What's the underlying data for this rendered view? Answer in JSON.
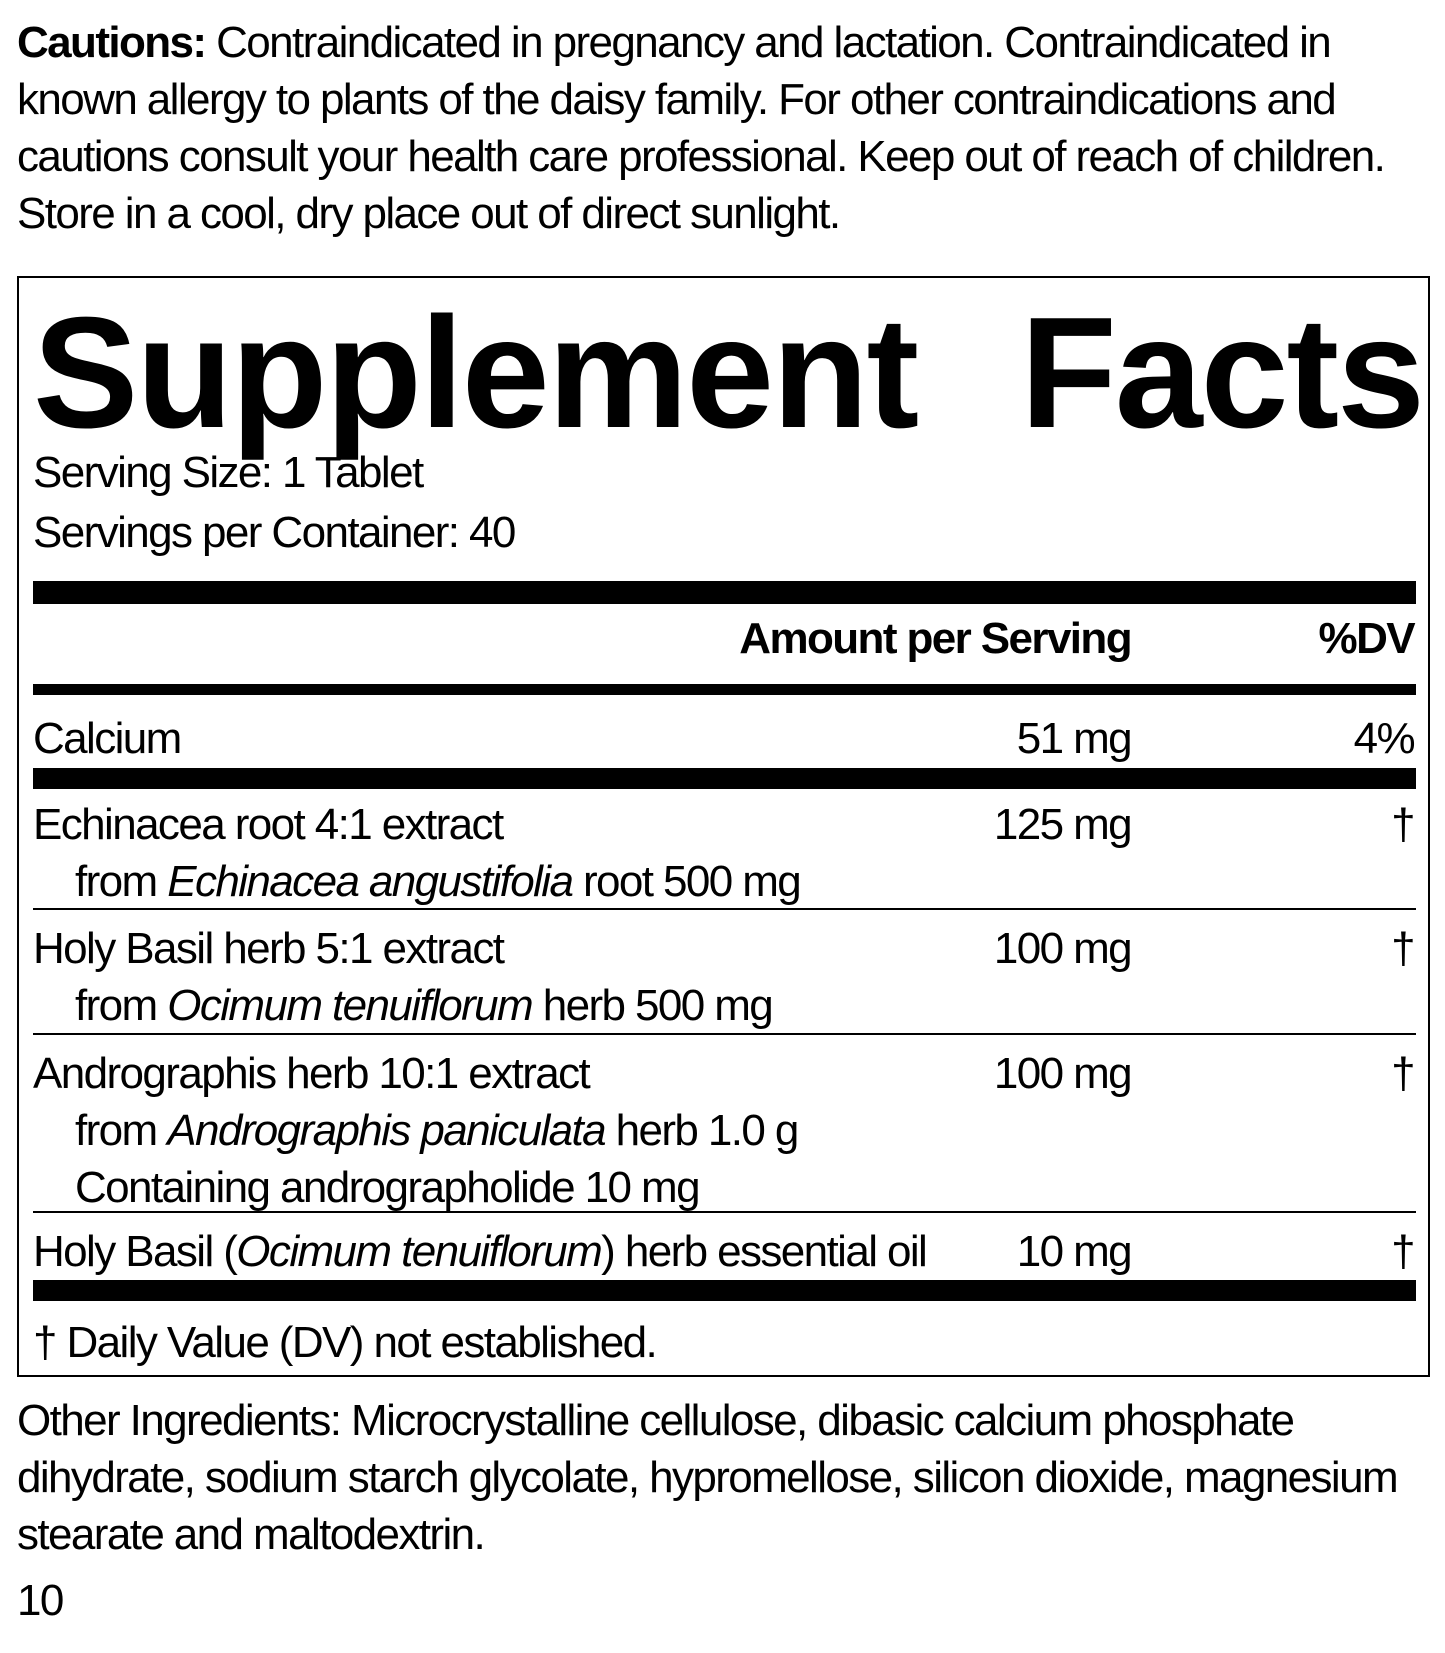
{
  "cautions": {
    "label": "Cautions:",
    "text": "Contraindicated in pregnancy and lactation. Contraindicated in known allergy to plants of the daisy family. For other contraindications and cautions consult your health care professional. Keep out of reach of children. Store in a cool, dry place out of direct sunlight."
  },
  "facts": {
    "title_1": "Supplement",
    "title_2": "Facts",
    "serving_size": "Serving Size: 1 Tablet",
    "servings_per_container": "Servings per Container: 40",
    "header_amount": "Amount per Serving",
    "header_dv": "%DV",
    "calcium": {
      "name": "Calcium",
      "amount": "51 mg",
      "dv": "4%"
    },
    "rows": [
      {
        "line1": "Echinacea root 4:1 extract",
        "from": "from ",
        "latin": "Echinacea angustifolia",
        "rest": " root 500 mg",
        "amount": "125 mg",
        "dv": "†"
      },
      {
        "line1": "Holy Basil herb 5:1 extract",
        "from": "from ",
        "latin": "Ocimum tenuiflorum",
        "rest": " herb 500 mg",
        "amount": "100 mg",
        "dv": "†"
      },
      {
        "line1": "Andrographis herb 10:1 extract",
        "from": "from ",
        "latin": "Andrographis paniculata",
        "rest": " herb 1.0 g",
        "line3": "Containing andrographolide 10 mg",
        "amount": "100 mg",
        "dv": "†"
      }
    ],
    "oil": {
      "pre": "Holy Basil (",
      "latin": "Ocimum tenuiflorum",
      "post": ") herb essential oil",
      "amount": "10 mg",
      "dv": "†"
    },
    "footnote": "† Daily Value (DV) not established."
  },
  "other_ingredients": "Other Ingredients: Microcrystalline cellulose, dibasic calcium phosphate dihydrate, sodium starch glycolate, hypromellose, silicon dioxide, magnesium stearate and maltodextrin.",
  "page_number": "10"
}
